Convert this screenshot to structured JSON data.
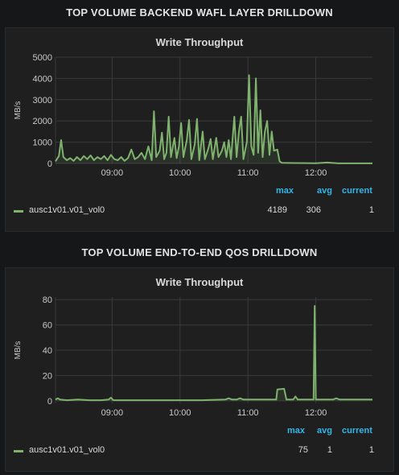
{
  "colors": {
    "series": "#7eb26d",
    "legend_header": "#33b5e5",
    "background": "#161719",
    "panel": "#1f1f20",
    "grid": "#3a3a3c"
  },
  "rows": [
    {
      "title": "TOP VOLUME BACKEND WAFL LAYER DRILLDOWN",
      "panel_title": "Write Throughput",
      "legend": {
        "headers": {
          "max": "max",
          "avg": "avg",
          "current": "current"
        },
        "series_name": "ausc1v01.v01_vol0",
        "max": "4189",
        "avg": "306",
        "current": "1"
      },
      "chart_data": {
        "type": "line",
        "title": "Write Throughput",
        "ylabel": "MB/s",
        "xlabel": "",
        "ylim": [
          0,
          5000
        ],
        "yticks": [
          "0",
          "1000",
          "2000",
          "3000",
          "4000",
          "5000"
        ],
        "xticks": [
          "09:00",
          "10:00",
          "11:00",
          "12:00"
        ],
        "x_range_minutes": [
          490,
          770
        ],
        "grid": true,
        "series": [
          {
            "name": "ausc1v01.v01_vol0",
            "points": [
              [
                490,
                100
              ],
              [
                493,
                350
              ],
              [
                495,
                1100
              ],
              [
                497,
                300
              ],
              [
                500,
                150
              ],
              [
                503,
                250
              ],
              [
                506,
                120
              ],
              [
                509,
                300
              ],
              [
                512,
                150
              ],
              [
                515,
                350
              ],
              [
                518,
                200
              ],
              [
                521,
                380
              ],
              [
                524,
                150
              ],
              [
                527,
                300
              ],
              [
                530,
                200
              ],
              [
                533,
                350
              ],
              [
                536,
                150
              ],
              [
                539,
                400
              ],
              [
                542,
                200
              ],
              [
                545,
                150
              ],
              [
                548,
                300
              ],
              [
                551,
                120
              ],
              [
                554,
                250
              ],
              [
                557,
                650
              ],
              [
                560,
                200
              ],
              [
                563,
                300
              ],
              [
                566,
                500
              ],
              [
                569,
                200
              ],
              [
                572,
                800
              ],
              [
                575,
                150
              ],
              [
                577,
                2450
              ],
              [
                579,
                300
              ],
              [
                582,
                600
              ],
              [
                584,
                1450
              ],
              [
                586,
                200
              ],
              [
                588,
                500
              ],
              [
                590,
                2200
              ],
              [
                592,
                300
              ],
              [
                595,
                1200
              ],
              [
                597,
                250
              ],
              [
                599,
                800
              ],
              [
                601,
                1900
              ],
              [
                603,
                300
              ],
              [
                606,
                1100
              ],
              [
                608,
                2050
              ],
              [
                610,
                200
              ],
              [
                613,
                900
              ],
              [
                615,
                2100
              ],
              [
                617,
                150
              ],
              [
                620,
                1500
              ],
              [
                622,
                200
              ],
              [
                625,
                700
              ],
              [
                627,
                1150
              ],
              [
                629,
                200
              ],
              [
                632,
                1200
              ],
              [
                634,
                300
              ],
              [
                637,
                600
              ],
              [
                639,
                1000
              ],
              [
                641,
                300
              ],
              [
                643,
                1100
              ],
              [
                645,
                200
              ],
              [
                648,
                2200
              ],
              [
                650,
                300
              ],
              [
                652,
                1500
              ],
              [
                654,
                2200
              ],
              [
                656,
                200
              ],
              [
                659,
                1000
              ],
              [
                661,
                4150
              ],
              [
                663,
                800
              ],
              [
                665,
                400
              ],
              [
                667,
                4000
              ],
              [
                669,
                500
              ],
              [
                671,
                2500
              ],
              [
                673,
                300
              ],
              [
                675,
                1500
              ],
              [
                677,
                2000
              ],
              [
                679,
                400
              ],
              [
                681,
                1500
              ],
              [
                683,
                600
              ],
              [
                686,
                650
              ],
              [
                688,
                100
              ],
              [
                690,
                30
              ],
              [
                700,
                20
              ],
              [
                720,
                10
              ],
              [
                730,
                40
              ],
              [
                740,
                5
              ],
              [
                770,
                5
              ]
            ]
          }
        ]
      }
    },
    {
      "title": "TOP VOLUME END-TO-END QOS DRILLDOWN",
      "panel_title": "Write Throughput",
      "legend": {
        "headers": {
          "max": "max",
          "avg": "avg",
          "current": "current"
        },
        "series_name": "ausc1v01.v01_vol0",
        "max": "75",
        "avg": "1",
        "current": "1"
      },
      "chart_data": {
        "type": "line",
        "title": "Write Throughput",
        "ylabel": "MB/s",
        "xlabel": "",
        "ylim": [
          -2,
          82
        ],
        "yticks": [
          "0",
          "20",
          "40",
          "60",
          "80"
        ],
        "xticks": [
          "09:00",
          "10:00",
          "11:00",
          "12:00"
        ],
        "x_range_minutes": [
          490,
          770
        ],
        "grid": true,
        "series": [
          {
            "name": "ausc1v01.v01_vol0",
            "points": [
              [
                490,
                1
              ],
              [
                492,
                2
              ],
              [
                494,
                1
              ],
              [
                500,
                0.5
              ],
              [
                510,
                1
              ],
              [
                520,
                0.5
              ],
              [
                530,
                0.5
              ],
              [
                537,
                1
              ],
              [
                539,
                2.5
              ],
              [
                541,
                0.5
              ],
              [
                560,
                0.5
              ],
              [
                580,
                0.5
              ],
              [
                600,
                0.5
              ],
              [
                620,
                0.5
              ],
              [
                640,
                1
              ],
              [
                643,
                2
              ],
              [
                646,
                1
              ],
              [
                650,
                1
              ],
              [
                653,
                2
              ],
              [
                656,
                1
              ],
              [
                670,
                1
              ],
              [
                680,
                1
              ],
              [
                685,
                1
              ],
              [
                686,
                9
              ],
              [
                692,
                9.5
              ],
              [
                694,
                1
              ],
              [
                700,
                1
              ],
              [
                702,
                3.5
              ],
              [
                704,
                1
              ],
              [
                710,
                1
              ],
              [
                718,
                1
              ],
              [
                719,
                75
              ],
              [
                720,
                1
              ],
              [
                735,
                1
              ],
              [
                738,
                2
              ],
              [
                741,
                1
              ],
              [
                750,
                1
              ],
              [
                760,
                1
              ],
              [
                770,
                1
              ]
            ]
          }
        ]
      }
    }
  ]
}
